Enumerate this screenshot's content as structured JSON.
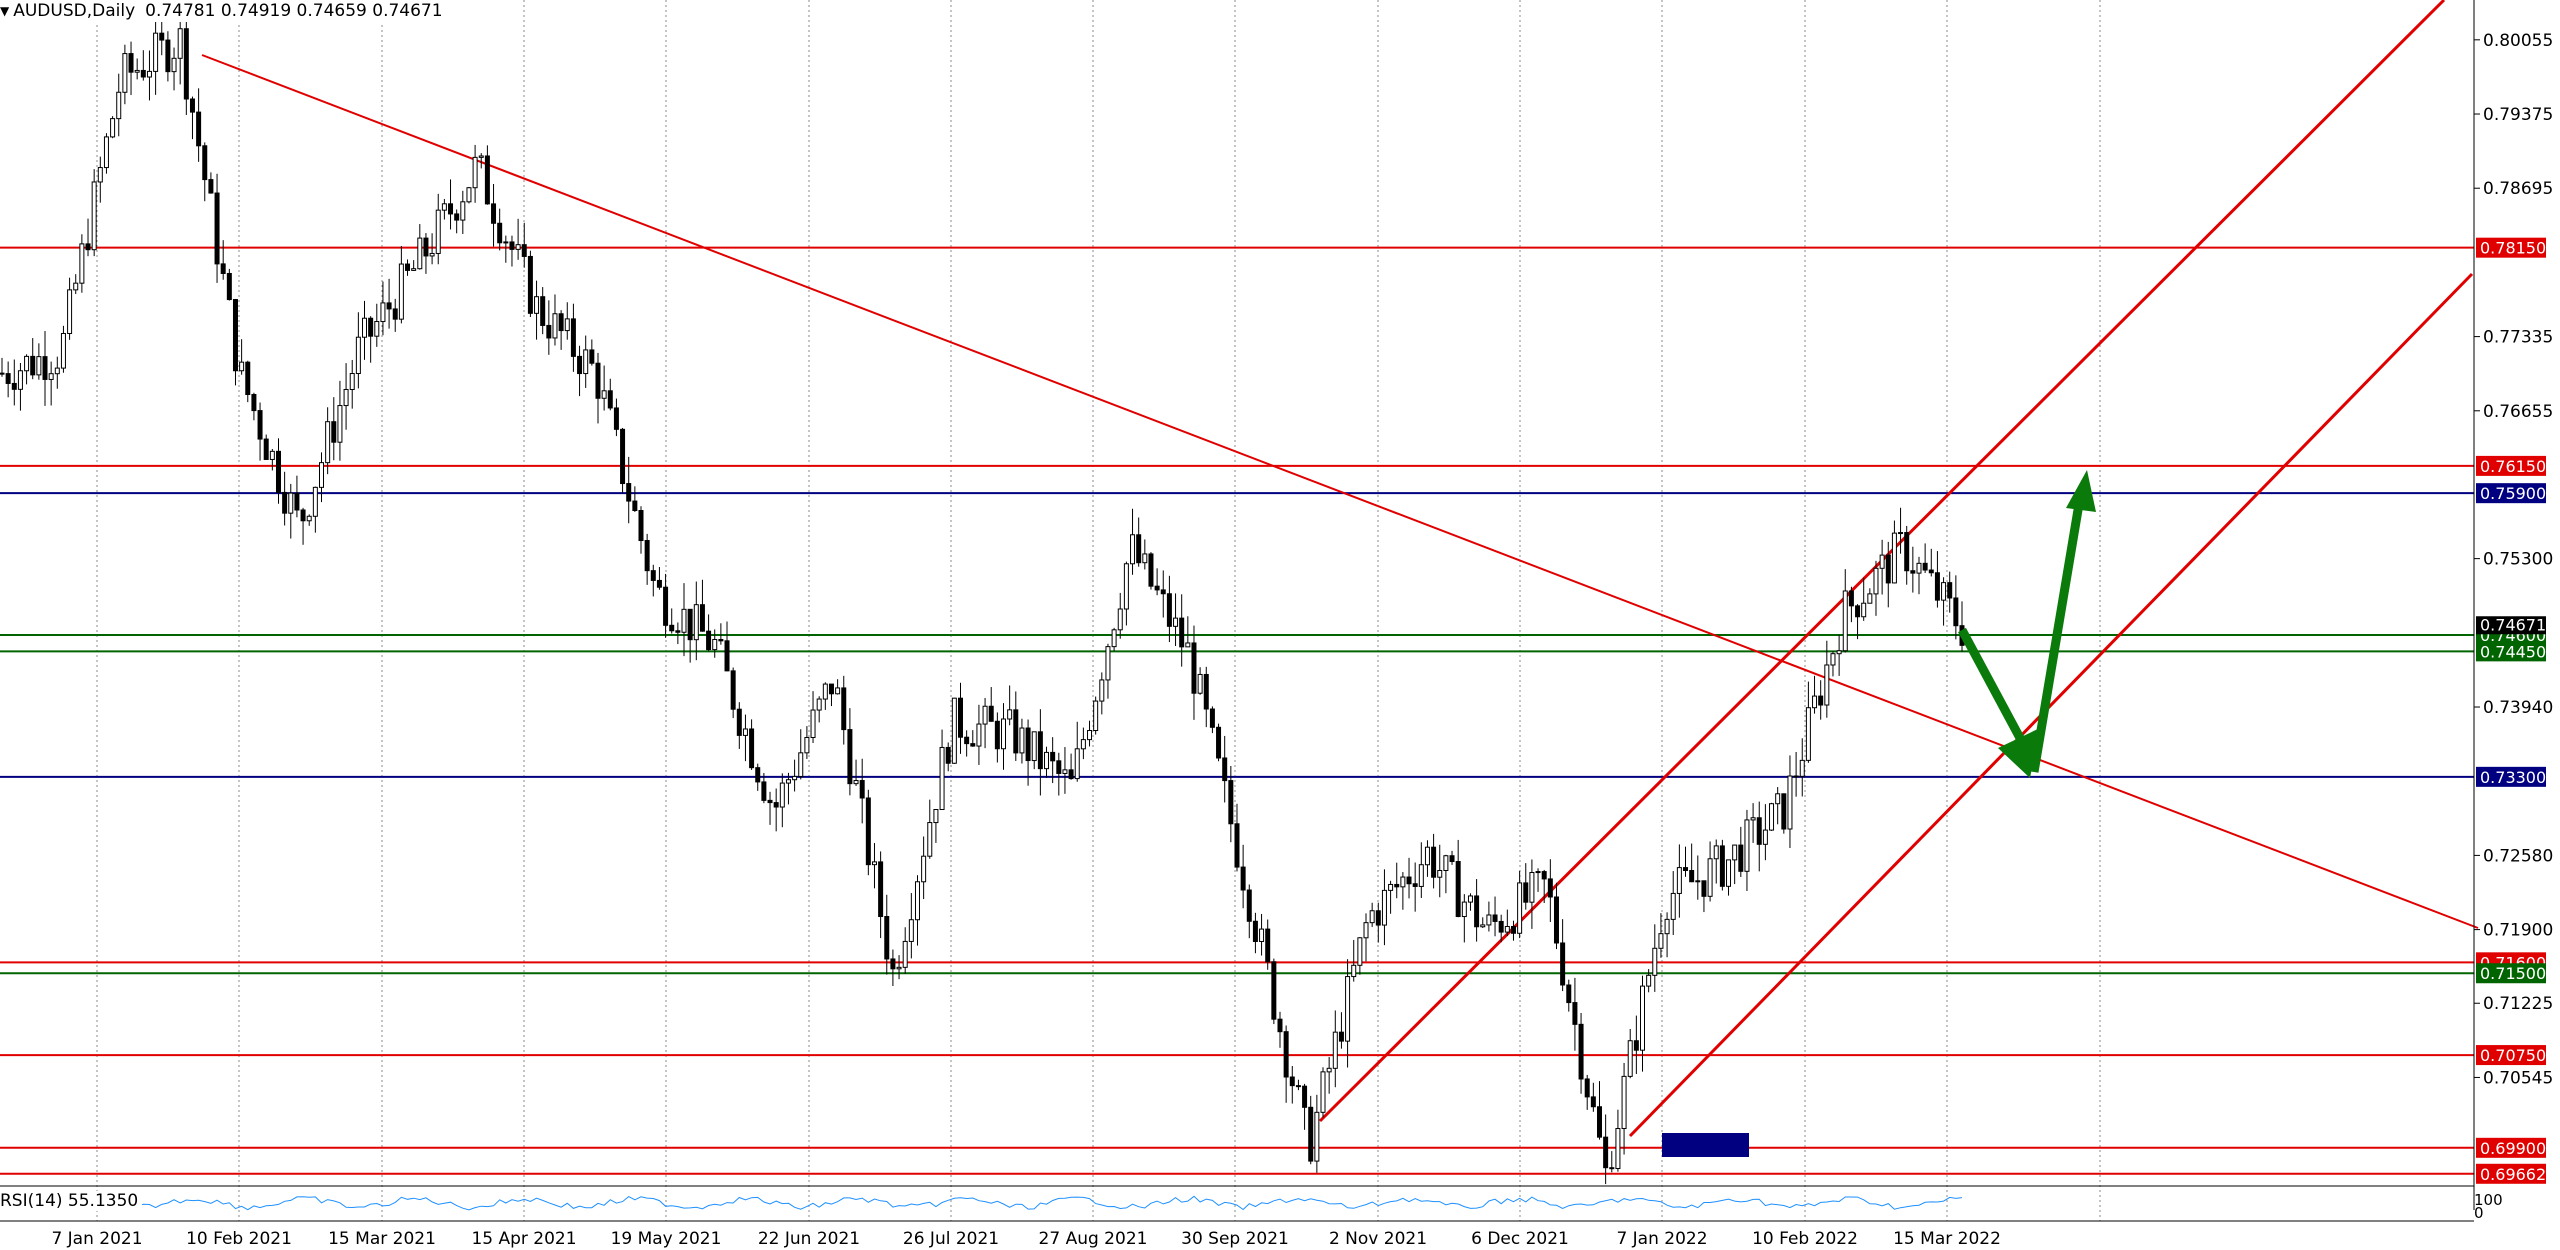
{
  "header": {
    "symbol_timeframe": "AUDUSD,Daily",
    "ohlc": "0.74781 0.74919 0.74659 0.74671"
  },
  "rsi": {
    "label": "RSI(14) 55.1350",
    "level_high": "100",
    "level_low": "0"
  },
  "chart_data": {
    "type": "candlestick",
    "x_tick_labels": [
      "7 Jan 2021",
      "10 Feb 2021",
      "15 Mar 2021",
      "15 Apr 2021",
      "19 May 2021",
      "22 Jun 2021",
      "26 Jul 2021",
      "27 Aug 2021",
      "30 Sep 2021",
      "2 Nov 2021",
      "6 Dec 2021",
      "7 Jan 2022",
      "10 Feb 2022",
      "15 Mar 2022"
    ],
    "y_tick_labels": [
      "0.80055",
      "0.79375",
      "0.78695",
      "0.77335",
      "0.76655",
      "0.75300",
      "0.73940",
      "0.72580",
      "0.71900",
      "0.71225",
      "0.70545"
    ],
    "ylim": [
      0.6955,
      0.8042
    ],
    "price_anchors": [
      [
        0.747,
        0.77
      ],
      [
        0.765,
        0.772
      ],
      [
        0.788,
        0.797
      ],
      [
        0.798,
        0.8005
      ],
      [
        0.777,
        0.77
      ],
      [
        0.76,
        0.756
      ],
      [
        0.768,
        0.772
      ],
      [
        0.775,
        0.78
      ],
      [
        0.779,
        0.789
      ],
      [
        0.772,
        0.776
      ],
      [
        0.774,
        0.77
      ],
      [
        0.756,
        0.75
      ],
      [
        0.762,
        0.745
      ],
      [
        0.735,
        0.73
      ],
      [
        0.74,
        0.742
      ],
      [
        0.738,
        0.715
      ],
      [
        0.73,
        0.738
      ],
      [
        0.746,
        0.737
      ],
      [
        0.728,
        0.732
      ],
      [
        0.746,
        0.754
      ],
      [
        0.754,
        0.744
      ],
      [
        0.732,
        0.722
      ],
      [
        0.715,
        0.699
      ],
      [
        0.71,
        0.72
      ],
      [
        0.723,
        0.726
      ],
      [
        0.717,
        0.719
      ],
      [
        0.71,
        0.723
      ],
      [
        0.705,
        0.6966
      ],
      [
        0.71,
        0.722
      ],
      [
        0.74,
        0.725
      ],
      [
        0.718,
        0.73
      ],
      [
        0.745,
        0.748
      ],
      [
        0.76,
        0.754
      ],
      [
        0.7467,
        0.7467
      ]
    ],
    "horizontal_levels": [
      {
        "price": 0.7815,
        "color": "#e00000",
        "label": "0.78150"
      },
      {
        "price": 0.7615,
        "color": "#e00000",
        "label": "0.76150"
      },
      {
        "price": 0.759,
        "color": "#000080",
        "label": "0.75900"
      },
      {
        "price": 0.746,
        "color": "#006400",
        "label": "0.74600"
      },
      {
        "price": 0.7445,
        "color": "#006400",
        "label": "0.74450"
      },
      {
        "price": 0.733,
        "color": "#000080",
        "label": "0.73300"
      },
      {
        "price": 0.716,
        "color": "#e00000",
        "label": "0.71600"
      },
      {
        "price": 0.715,
        "color": "#006400",
        "label": "0.71500"
      },
      {
        "price": 0.7075,
        "color": "#e00000",
        "label": "0.70750"
      },
      {
        "price": 0.699,
        "color": "#e00000",
        "label": "0.69900"
      },
      {
        "price": 0.69662,
        "color": "#e00000",
        "label": "0.69662"
      }
    ],
    "current_price": {
      "price": 0.74671,
      "label": "0.74671"
    },
    "colors": {
      "level_red": "#e00000",
      "level_green": "#006400",
      "level_navy": "#000080",
      "projection_arrow": "#0a7a0a",
      "rsi_line": "#1e90ff",
      "demand_zone": "#000080"
    }
  }
}
